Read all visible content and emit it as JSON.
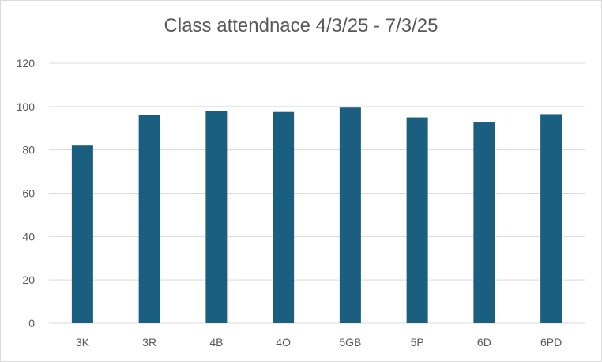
{
  "chart_data": {
    "type": "bar",
    "title": "Class attendnace 4/3/25 - 7/3/25",
    "xlabel": "",
    "ylabel": "",
    "categories": [
      "3K",
      "3R",
      "4B",
      "4O",
      "5GB",
      "5P",
      "6D",
      "6PD"
    ],
    "values": [
      82,
      96,
      98,
      97.5,
      99.5,
      95,
      93,
      96.5
    ],
    "ylim": [
      0,
      120
    ],
    "yticks": [
      0,
      20,
      40,
      60,
      80,
      100,
      120
    ],
    "grid": true,
    "legend": "none",
    "colors": {
      "bar": "#1a5e80",
      "grid": "#d9d9d9",
      "axis": "#d9d9d9",
      "text": "#595959"
    }
  }
}
